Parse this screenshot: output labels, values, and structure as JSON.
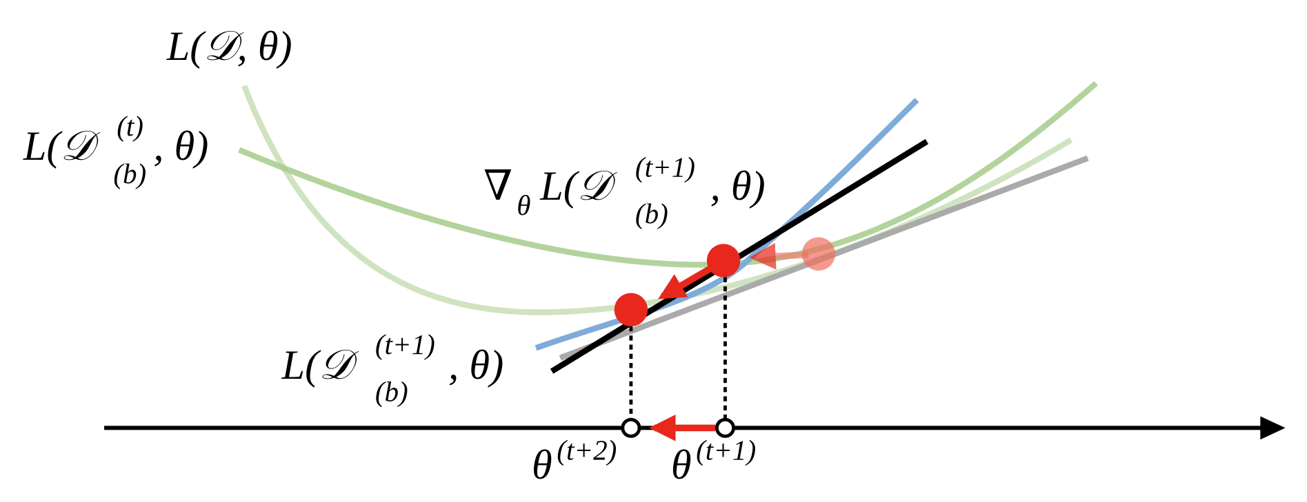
{
  "curve_labels": [
    {
      "main": "L(𝒟, θ)"
    },
    {
      "main": "L(𝒟",
      "sup": "(t)",
      "sub": "(b)",
      "rest": ", θ)"
    },
    {
      "main": "L(𝒟",
      "sup": "(t+1)",
      "sub": "(b)",
      "rest": ", θ)"
    }
  ],
  "gradient_label": {
    "nabla": "∇",
    "nabla_sub": "θ",
    "main": "L(𝒟",
    "sup": "(t+1)",
    "sub": "(b)",
    "rest": ", θ)"
  },
  "axis_labels": [
    {
      "main": "θ",
      "sup": "(t+2)"
    },
    {
      "main": "θ",
      "sup": "(t+1)"
    }
  ]
}
